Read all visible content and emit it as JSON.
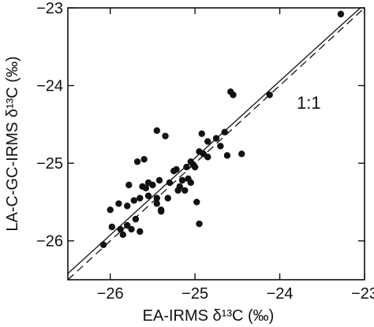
{
  "chart_data": {
    "type": "scatter",
    "title": "",
    "xlabel": "EA-IRMS δ¹³C (‰)",
    "ylabel": "LA-C-GC-IRMS δ¹³C (‰)",
    "xlim": [
      -26.5,
      -23
    ],
    "ylim": [
      -26.5,
      -23
    ],
    "x_ticks": [
      -26,
      -25,
      -24,
      -23
    ],
    "y_ticks": [
      -26,
      -25,
      -24,
      -23
    ],
    "x_tick_labels": [
      "−26",
      "−25",
      "−24",
      "−23"
    ],
    "y_tick_labels": [
      "−26",
      "−25",
      "−24",
      "−23"
    ],
    "grid": false,
    "legend": "none",
    "annotation": "1:1",
    "points": {
      "x": [
        -23.28,
        -24.12,
        -24.45,
        -24.55,
        -24.62,
        -24.58,
        -24.65,
        -24.7,
        -24.75,
        -24.85,
        -24.92,
        -24.95,
        -24.95,
        -24.98,
        -25.02,
        -25.05,
        -25.08,
        -25.1,
        -25.12,
        -25.15,
        -25.18,
        -25.22,
        -25.25,
        -25.3,
        -25.35,
        -25.4,
        -25.42,
        -25.45,
        -25.45,
        -25.45,
        -25.5,
        -25.55,
        -25.58,
        -25.6,
        -25.62,
        -25.65,
        -25.68,
        -25.7,
        -25.72,
        -25.75,
        -25.78,
        -25.8,
        -25.85,
        -25.88,
        -25.9,
        -25.98,
        -26.0,
        -26.08,
        -25.32,
        -25.0,
        -25.4,
        -25.55,
        -25.65,
        -24.9,
        -25.8,
        -25.2,
        -24.85,
        -25.05
      ],
      "y": [
        -23.08,
        -24.12,
        -24.88,
        -24.12,
        -24.9,
        -24.08,
        -24.6,
        -24.78,
        -24.68,
        -24.72,
        -24.62,
        -24.85,
        -25.78,
        -25.5,
        -25.02,
        -25.25,
        -25.2,
        -25.05,
        -25.35,
        -25.22,
        -25.3,
        -25.08,
        -25.1,
        -25.25,
        -24.65,
        -25.6,
        -25.22,
        -24.58,
        -25.45,
        -25.52,
        -25.28,
        -25.42,
        -25.32,
        -24.95,
        -25.3,
        -25.45,
        -24.98,
        -25.72,
        -25.48,
        -25.85,
        -25.28,
        -25.55,
        -25.92,
        -25.85,
        -25.52,
        -25.82,
        -25.6,
        -26.05,
        -25.45,
        -25.05,
        -25.62,
        -25.25,
        -25.88,
        -24.88,
        -25.8,
        -25.35,
        -24.92,
        -24.98
      ]
    },
    "lines": [
      {
        "style": "solid",
        "x": [
          -26.5,
          -23.05
        ],
        "y": [
          -26.42,
          -23.0
        ]
      },
      {
        "style": "dashed",
        "x": [
          -26.5,
          -23.0
        ],
        "y": [
          -26.5,
          -23.0
        ]
      }
    ]
  }
}
